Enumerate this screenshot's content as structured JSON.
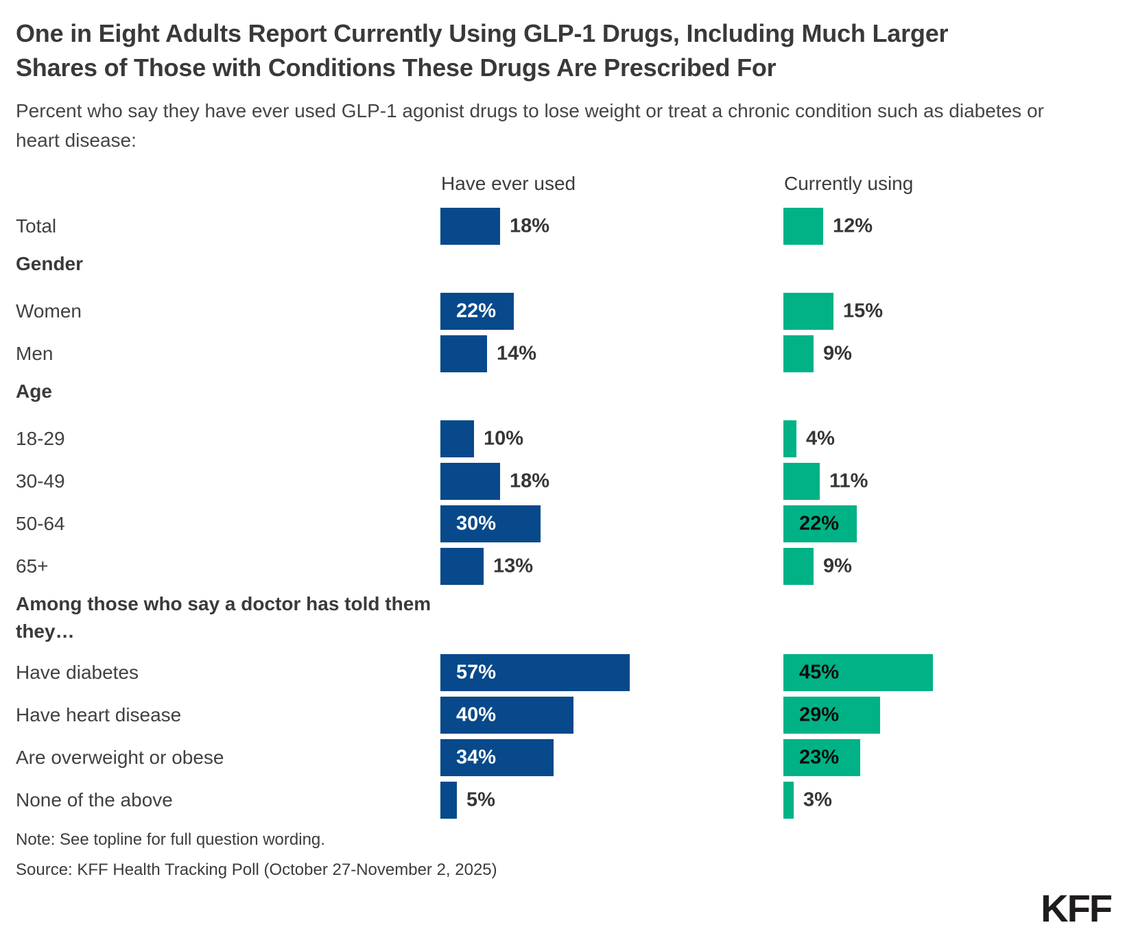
{
  "header": {
    "title": "One in Eight Adults Report Currently Using GLP-1 Drugs, Including Much Larger Shares of Those with Conditions These Drugs Are Prescribed For",
    "subtitle": "Percent who say they have ever used GLP-1 agonist drugs to lose weight or treat a chronic condition such as diabetes or heart disease:"
  },
  "chart_data": {
    "type": "bar",
    "orientation": "horizontal",
    "unit": "%",
    "xlim": [
      0,
      60
    ],
    "legend_position": "column-headers",
    "grid": false,
    "series": [
      {
        "name": "Have ever used",
        "color": "#07498a"
      },
      {
        "name": "Currently using",
        "color": "#00b286"
      }
    ],
    "rows": [
      {
        "kind": "bar",
        "label": "Total",
        "values": [
          18,
          12
        ]
      },
      {
        "kind": "section",
        "label": "Gender"
      },
      {
        "kind": "bar",
        "label": "Women",
        "values": [
          22,
          15
        ]
      },
      {
        "kind": "bar",
        "label": "Men",
        "values": [
          14,
          9
        ]
      },
      {
        "kind": "section",
        "label": "Age"
      },
      {
        "kind": "bar",
        "label": "18-29",
        "values": [
          10,
          4
        ]
      },
      {
        "kind": "bar",
        "label": "30-49",
        "values": [
          18,
          11
        ]
      },
      {
        "kind": "bar",
        "label": "50-64",
        "values": [
          30,
          22
        ]
      },
      {
        "kind": "bar",
        "label": "65+",
        "values": [
          13,
          9
        ]
      },
      {
        "kind": "section",
        "label": "Among those who say a doctor has told them they…"
      },
      {
        "kind": "bar",
        "label": "Have diabetes",
        "values": [
          57,
          45
        ]
      },
      {
        "kind": "bar",
        "label": "Have heart disease",
        "values": [
          40,
          29
        ]
      },
      {
        "kind": "bar",
        "label": "Are overweight or obese",
        "values": [
          34,
          23
        ]
      },
      {
        "kind": "bar",
        "label": "None of the above",
        "values": [
          5,
          3
        ]
      }
    ]
  },
  "footer": {
    "note": "Note: See topline for full question wording.",
    "source": "Source: KFF Health Tracking Poll (October 27-November 2, 2025)",
    "logo": "KFF"
  }
}
